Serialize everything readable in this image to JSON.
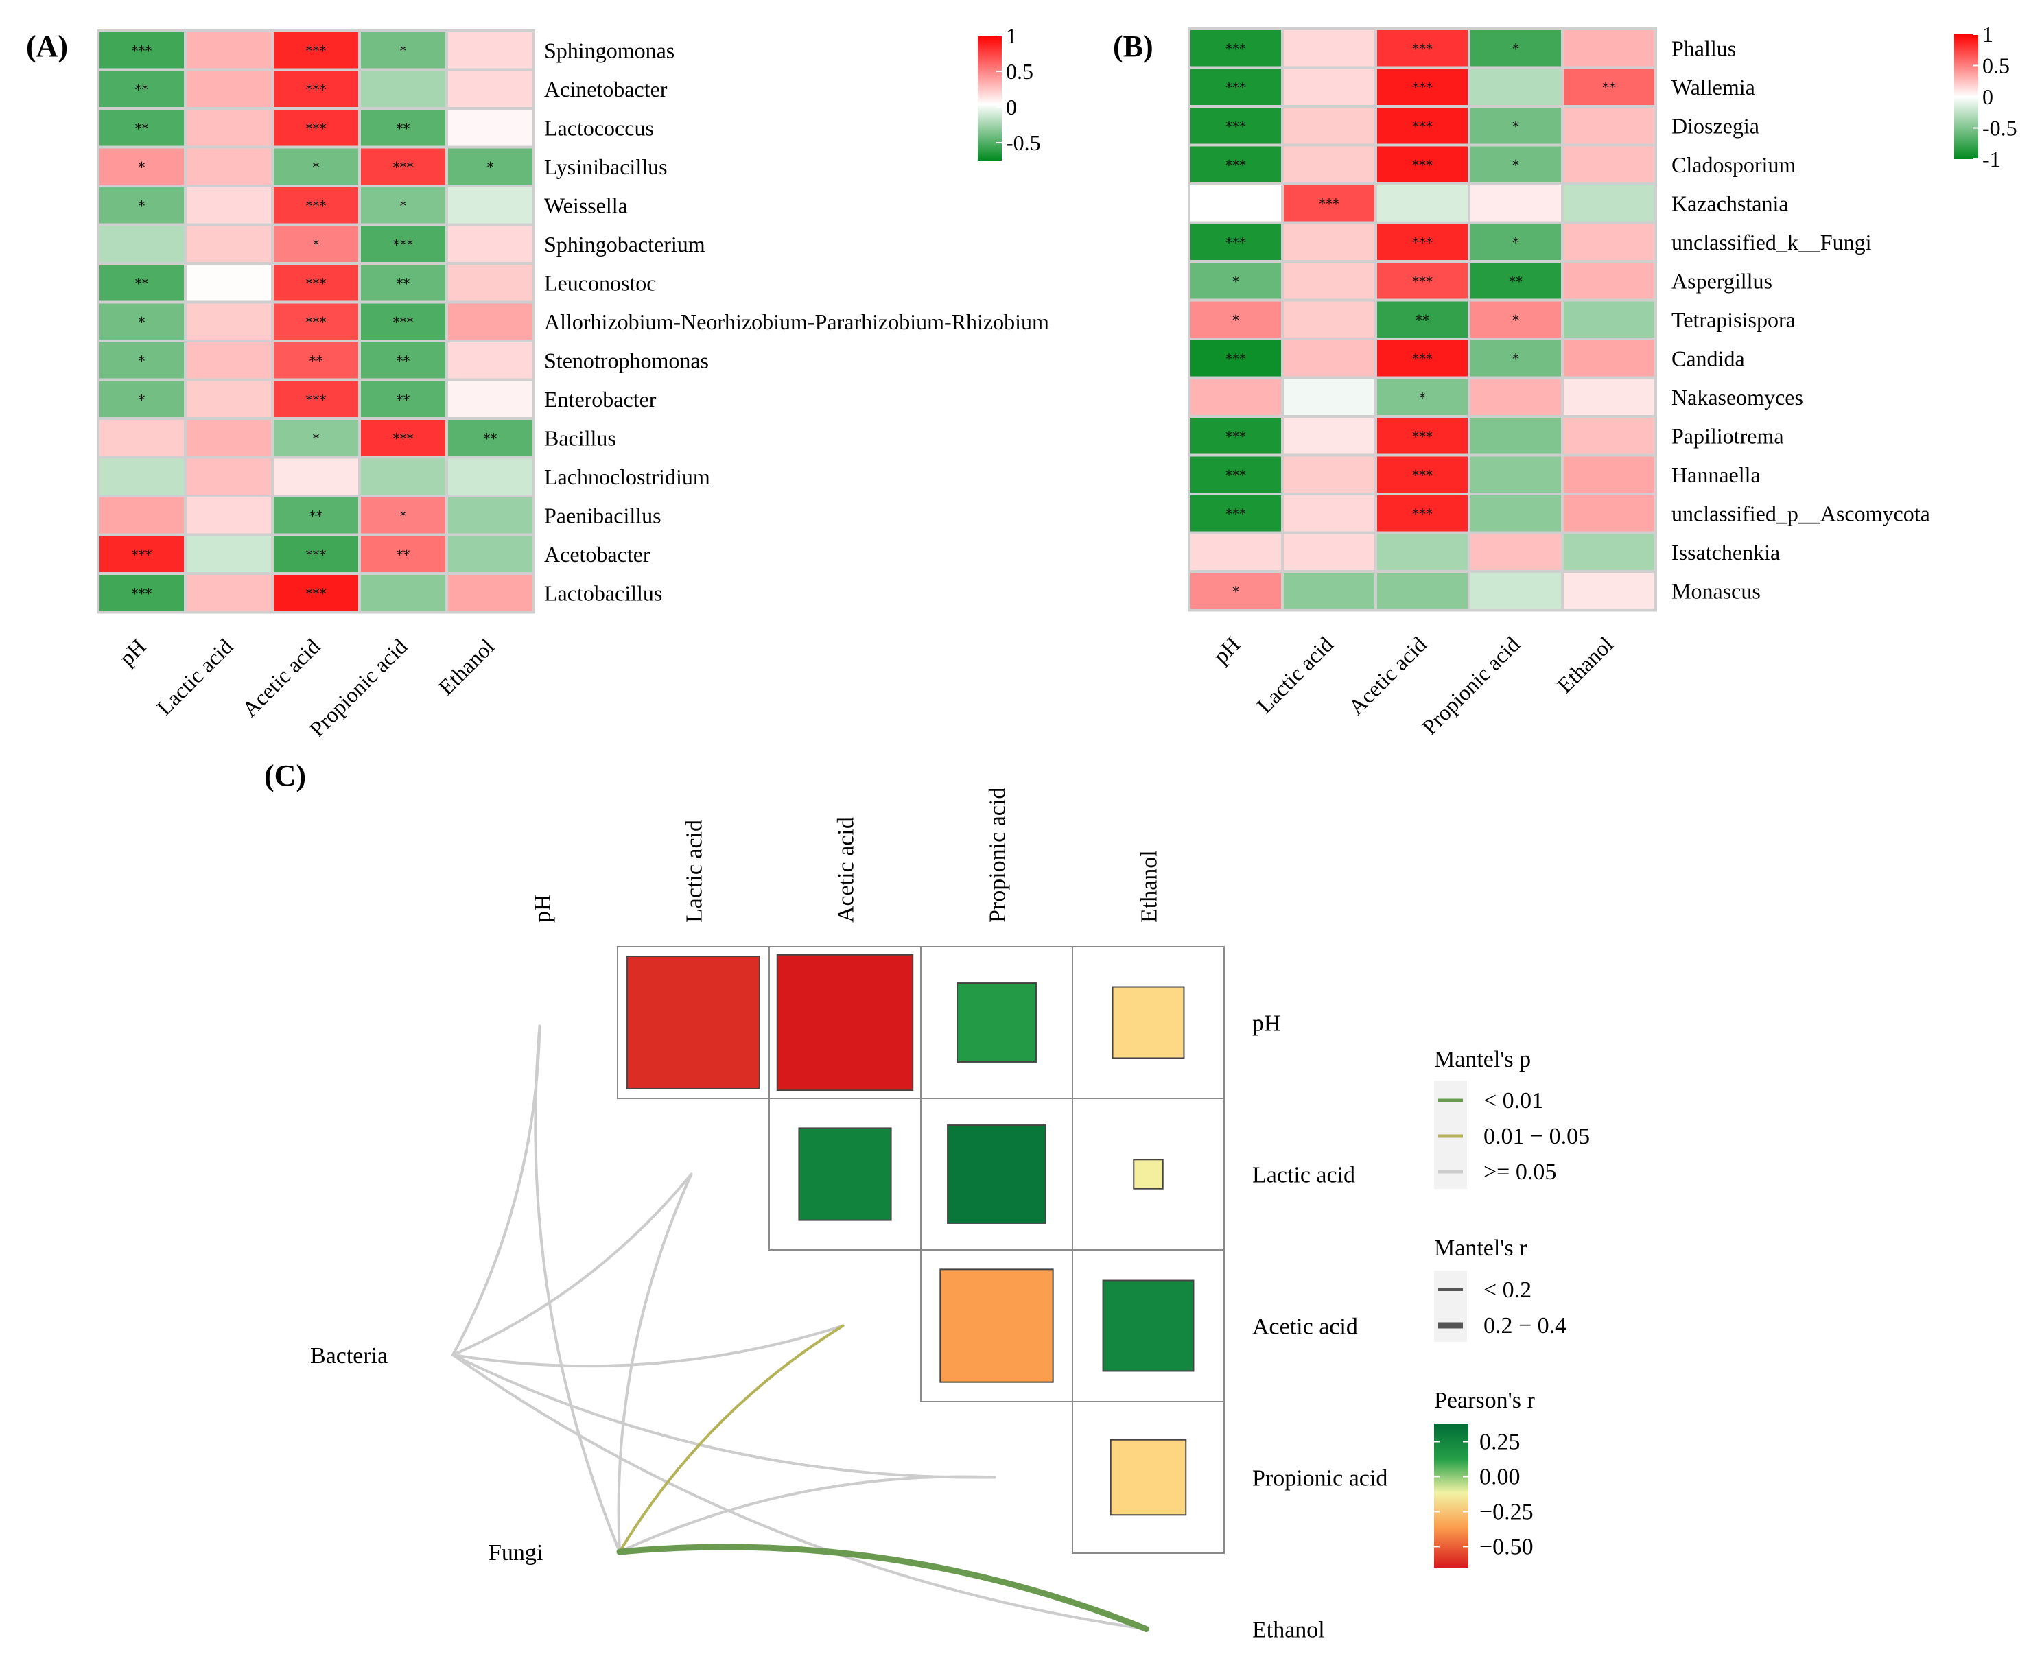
{
  "chart_data": [
    {
      "type": "heatmap",
      "panel": "(A)",
      "columns": [
        "pH",
        "Lactic acid",
        "Acetic acid",
        "Propionic acid",
        "Ethanol"
      ],
      "rows": [
        "Sphingomonas",
        "Acinetobacter",
        "Lactococcus",
        "Lysinibacillus",
        "Weissella",
        "Sphingobacterium",
        "Leuconostoc",
        "Allorhizobium-Neorhizobium-Pararhizobium-Rhizobium",
        "Stenotrophomonas",
        "Enterobacter",
        "Bacillus",
        "Lachnoclostridium",
        "Paenibacillus",
        "Acetobacter",
        "Lactobacillus"
      ],
      "values": [
        [
          -0.75,
          0.3,
          0.85,
          -0.55,
          0.15
        ],
        [
          -0.7,
          0.3,
          0.8,
          -0.35,
          0.15
        ],
        [
          -0.7,
          0.25,
          0.8,
          -0.65,
          0.03
        ],
        [
          0.4,
          0.25,
          -0.55,
          0.75,
          -0.6
        ],
        [
          -0.55,
          0.15,
          0.75,
          -0.5,
          -0.15
        ],
        [
          -0.3,
          0.2,
          0.5,
          -0.7,
          0.15
        ],
        [
          -0.7,
          0.01,
          0.75,
          -0.6,
          0.2
        ],
        [
          -0.55,
          0.2,
          0.7,
          -0.7,
          0.35
        ],
        [
          -0.55,
          0.25,
          0.65,
          -0.65,
          0.15
        ],
        [
          -0.55,
          0.2,
          0.75,
          -0.65,
          0.05
        ],
        [
          0.2,
          0.3,
          -0.45,
          0.8,
          -0.65
        ],
        [
          -0.25,
          0.25,
          0.1,
          -0.35,
          -0.2
        ],
        [
          0.35,
          0.15,
          -0.65,
          0.5,
          -0.4
        ],
        [
          0.85,
          -0.2,
          -0.75,
          0.55,
          -0.4
        ],
        [
          -0.75,
          0.25,
          0.9,
          -0.45,
          0.35
        ]
      ],
      "stars": [
        [
          "***",
          "",
          "***",
          "*",
          ""
        ],
        [
          "**",
          "",
          "***",
          "",
          ""
        ],
        [
          "**",
          "",
          "***",
          "**",
          ""
        ],
        [
          "*",
          "",
          "*",
          "***",
          "*"
        ],
        [
          "*",
          "",
          "***",
          "*",
          ""
        ],
        [
          "",
          "",
          "*",
          "***",
          ""
        ],
        [
          "**",
          "",
          "***",
          "**",
          ""
        ],
        [
          "*",
          "",
          "***",
          "***",
          ""
        ],
        [
          "*",
          "",
          "**",
          "**",
          ""
        ],
        [
          "*",
          "",
          "***",
          "**",
          ""
        ],
        [
          "",
          "",
          "*",
          "***",
          "**"
        ],
        [
          "",
          "",
          "",
          "",
          ""
        ],
        [
          "",
          "",
          "**",
          "*",
          ""
        ],
        [
          "***",
          "",
          "***",
          "**",
          ""
        ],
        [
          "***",
          "",
          "***",
          "",
          ""
        ]
      ],
      "legend_ticks": [
        "1",
        "0.5",
        "0",
        "-0.5"
      ],
      "legend_tick_values": [
        1,
        0.5,
        0,
        -0.5
      ],
      "legend_range": [
        -0.75,
        1
      ]
    },
    {
      "type": "heatmap",
      "panel": "(B)",
      "columns": [
        "pH",
        "Lactic acid",
        "Acetic acid",
        "Propionic acid",
        "Ethanol"
      ],
      "rows": [
        "Phallus",
        "Wallemia",
        "Dioszegia",
        "Cladosporium",
        "Kazachstania",
        "unclassified_k__Fungi",
        "Aspergillus",
        "Tetrapisispora",
        "Candida",
        "Nakaseomyces",
        "Papiliotrema",
        "Hannaella",
        "unclassified_p__Ascomycota",
        "Issatchenkia",
        "Monascus"
      ],
      "values": [
        [
          -0.9,
          0.15,
          0.8,
          -0.75,
          0.3
        ],
        [
          -0.9,
          0.15,
          0.9,
          -0.3,
          0.6
        ],
        [
          -0.9,
          0.2,
          0.9,
          -0.55,
          0.25
        ],
        [
          -0.9,
          0.2,
          0.9,
          -0.55,
          0.25
        ],
        [
          0.0,
          0.7,
          -0.15,
          0.08,
          -0.25
        ],
        [
          -0.9,
          0.2,
          0.85,
          -0.65,
          0.25
        ],
        [
          -0.6,
          0.2,
          0.7,
          -0.85,
          0.3
        ],
        [
          0.45,
          0.2,
          -0.8,
          0.45,
          -0.4
        ],
        [
          -0.95,
          0.25,
          0.9,
          -0.55,
          0.35
        ],
        [
          0.3,
          -0.05,
          -0.5,
          0.3,
          0.1
        ],
        [
          -0.9,
          0.1,
          0.85,
          -0.5,
          0.25
        ],
        [
          -0.9,
          0.2,
          0.85,
          -0.45,
          0.35
        ],
        [
          -0.9,
          0.15,
          0.85,
          -0.45,
          0.35
        ],
        [
          0.15,
          0.15,
          -0.35,
          0.25,
          -0.35
        ],
        [
          0.45,
          -0.45,
          -0.45,
          -0.2,
          0.1
        ]
      ],
      "stars": [
        [
          "***",
          "",
          "***",
          "*",
          ""
        ],
        [
          "***",
          "",
          "***",
          "",
          "**"
        ],
        [
          "***",
          "",
          "***",
          "*",
          ""
        ],
        [
          "***",
          "",
          "***",
          "*",
          ""
        ],
        [
          "",
          "***",
          "",
          "",
          ""
        ],
        [
          "***",
          "",
          "***",
          "*",
          ""
        ],
        [
          "*",
          "",
          "***",
          "**",
          ""
        ],
        [
          "*",
          "",
          "**",
          "*",
          ""
        ],
        [
          "***",
          "",
          "***",
          "*",
          ""
        ],
        [
          "",
          "",
          "*",
          "",
          ""
        ],
        [
          "***",
          "",
          "***",
          "",
          ""
        ],
        [
          "***",
          "",
          "***",
          "",
          ""
        ],
        [
          "***",
          "",
          "***",
          "",
          ""
        ],
        [
          "",
          "",
          "",
          "",
          ""
        ],
        [
          "*",
          "",
          "",
          "",
          ""
        ]
      ],
      "legend_ticks": [
        "1",
        "0.5",
        "0",
        "-0.5",
        "-1"
      ],
      "legend_tick_values": [
        1,
        0.5,
        0,
        -0.5,
        -1
      ],
      "legend_range": [
        -1,
        1
      ]
    },
    {
      "type": "heatmap",
      "panel": "(C)",
      "variables": [
        "pH",
        "Lactic acid",
        "Acetic acid",
        "Propionic acid",
        "Ethanol"
      ],
      "pearson_r": [
        {
          "row": "pH",
          "col": "Lactic acid",
          "r": -0.62
        },
        {
          "row": "pH",
          "col": "Acetic acid",
          "r": -0.65
        },
        {
          "row": "pH",
          "col": "Propionic acid",
          "r": 0.22
        },
        {
          "row": "pH",
          "col": "Ethanol",
          "r": -0.18
        },
        {
          "row": "Lactic acid",
          "col": "Acetic acid",
          "r": 0.3
        },
        {
          "row": "Lactic acid",
          "col": "Propionic acid",
          "r": 0.34
        },
        {
          "row": "Lactic acid",
          "col": "Ethanol",
          "r": -0.03
        },
        {
          "row": "Acetic acid",
          "col": "Propionic acid",
          "r": -0.45
        },
        {
          "row": "Acetic acid",
          "col": "Ethanol",
          "r": 0.29
        },
        {
          "row": "Propionic acid",
          "col": "Ethanol",
          "r": -0.2
        }
      ],
      "groups": [
        "Bacteria",
        "Fungi"
      ],
      "mantel_links": [
        {
          "from": "Bacteria",
          "to": "pH",
          "p": ">= 0.05",
          "r": "< 0.2"
        },
        {
          "from": "Bacteria",
          "to": "Lactic acid",
          "p": ">= 0.05",
          "r": "< 0.2"
        },
        {
          "from": "Bacteria",
          "to": "Acetic acid",
          "p": ">= 0.05",
          "r": "< 0.2"
        },
        {
          "from": "Bacteria",
          "to": "Propionic acid",
          "p": ">= 0.05",
          "r": "< 0.2"
        },
        {
          "from": "Bacteria",
          "to": "Ethanol",
          "p": ">= 0.05",
          "r": "< 0.2"
        },
        {
          "from": "Fungi",
          "to": "pH",
          "p": ">= 0.05",
          "r": "< 0.2"
        },
        {
          "from": "Fungi",
          "to": "Lactic acid",
          "p": ">= 0.05",
          "r": "< 0.2"
        },
        {
          "from": "Fungi",
          "to": "Acetic acid",
          "p": "0.01 - 0.05",
          "r": "< 0.2"
        },
        {
          "from": "Fungi",
          "to": "Propionic acid",
          "p": ">= 0.05",
          "r": "< 0.2"
        },
        {
          "from": "Fungi",
          "to": "Ethanol",
          "p": "< 0.01",
          "r": "0.2 - 0.4"
        }
      ],
      "legend": {
        "mantel_p_title": "Mantel's p",
        "mantel_p_items": [
          {
            "label": "< 0.01",
            "color": "#6a9a50"
          },
          {
            "label": "0.01 − 0.05",
            "color": "#b5b358"
          },
          {
            "label": ">= 0.05",
            "color": "#cccccc"
          }
        ],
        "mantel_r_title": "Mantel's r",
        "mantel_r_items": [
          {
            "label": "< 0.2",
            "width": 1
          },
          {
            "label": "0.2 − 0.4",
            "width": 2
          }
        ],
        "pearson_title": "Pearson's r",
        "pearson_ticks": [
          "0.25",
          "0.00",
          "−0.25",
          "−0.50"
        ],
        "pearson_tick_values": [
          0.25,
          0.0,
          -0.25,
          -0.5
        ],
        "pearson_range": [
          -0.65,
          0.38
        ]
      }
    }
  ],
  "labels": {
    "a": "(A)",
    "b": "(B)",
    "c": "(C)"
  }
}
